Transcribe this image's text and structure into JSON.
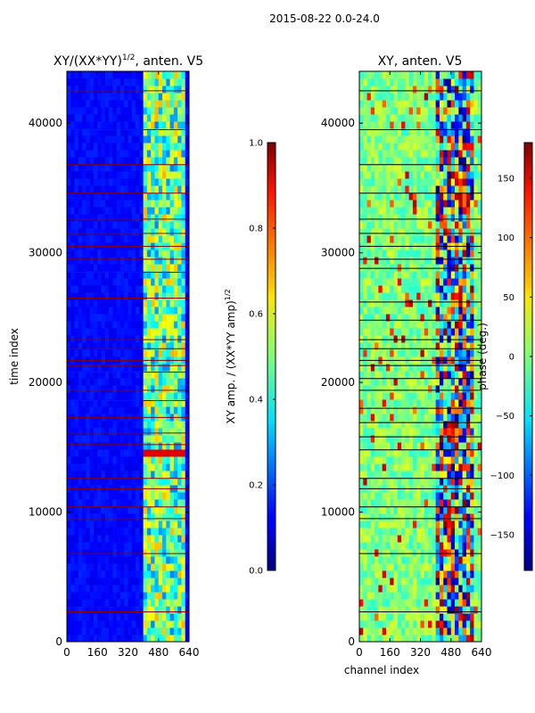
{
  "suptitle": "2015-08-22 0.0-24.0",
  "xlabel_shared": "channel index",
  "ylabel_shared": "time index",
  "chart_data": [
    {
      "type": "heatmap",
      "title": {
        "pre": "XY/(XX*YY)",
        "sup": "1/2",
        "post": ", anten. V5"
      },
      "xlabel": "",
      "ylabel": "time index",
      "xlim": [
        0,
        640
      ],
      "ylim": [
        0,
        44000
      ],
      "xticks": [
        0,
        160,
        320,
        480,
        640
      ],
      "xtick_labels": [
        "0",
        "160",
        "320",
        "480",
        "640"
      ],
      "yticks": [
        0,
        10000,
        20000,
        30000,
        40000
      ],
      "ytick_labels": [
        "0",
        "10000",
        "20000",
        "30000",
        "40000"
      ],
      "colormap": "jet",
      "colorbar": {
        "label_pre": "XY amp. / (XX*YY amp)",
        "label_sup": "1/2",
        "range": [
          0.0,
          1.0
        ],
        "ticks": [
          0.0,
          0.2,
          0.4,
          0.6,
          0.8,
          1.0
        ],
        "tick_labels": [
          "0.0",
          "0.2",
          "0.4",
          "0.6",
          "0.8",
          "1.0"
        ]
      },
      "background_value": 0.1,
      "active_channel_band": [
        410,
        620
      ],
      "strong_rows": [
        13800,
        14300
      ],
      "flagged_rows": [
        2300,
        6800,
        9500,
        10400,
        11800,
        12600,
        15200,
        16100,
        17300,
        18600,
        19400,
        20800,
        21300,
        21700,
        22600,
        23300,
        26500,
        28500,
        29500,
        30500,
        31500,
        32600,
        34600,
        36800,
        39500,
        42500
      ],
      "flag_color": "#8b0000"
    },
    {
      "type": "heatmap",
      "title": "XY, anten. V5",
      "xlabel": "channel index",
      "ylabel": "",
      "xlim": [
        0,
        640
      ],
      "ylim": [
        0,
        44000
      ],
      "xticks": [
        0,
        160,
        320,
        480,
        640
      ],
      "xtick_labels": [
        "0",
        "160",
        "320",
        "480",
        "640"
      ],
      "yticks": [
        0,
        10000,
        20000,
        30000,
        40000
      ],
      "ytick_labels": [
        "0",
        "10000",
        "20000",
        "30000",
        "40000"
      ],
      "colormap": "jet",
      "colorbar": {
        "label": "phase (deg.)",
        "range": [
          -180,
          180
        ],
        "ticks": [
          -150,
          -100,
          -50,
          0,
          50,
          100,
          150
        ],
        "tick_labels": [
          "−150",
          "−100",
          "−50",
          "0",
          "50",
          "100",
          "150"
        ]
      },
      "background_value": 0.0,
      "active_channel_band": [
        400,
        600
      ],
      "flagged_rows": [
        2300,
        6800,
        9500,
        10400,
        11800,
        12600,
        14800,
        15800,
        16900,
        18000,
        19400,
        20300,
        21300,
        21700,
        22600,
        23300,
        24800,
        26200,
        28800,
        29500,
        30500,
        31500,
        32600,
        34600,
        36800,
        39500,
        42500
      ],
      "flag_color": "#000000"
    }
  ]
}
